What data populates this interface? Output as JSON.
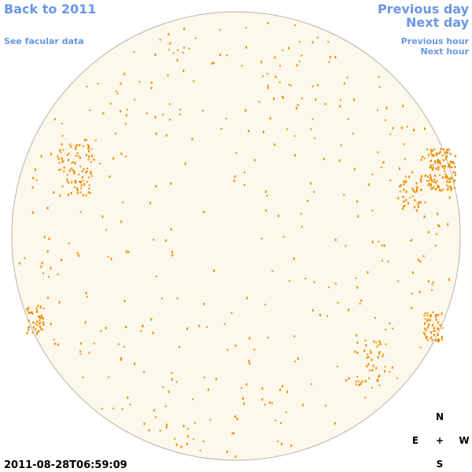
{
  "nav": {
    "back": "Back to 2011",
    "facular_data": "See facular data",
    "previous_day": "Previous day",
    "next_day": "Next day",
    "previous_hour": "Previous hour",
    "next_hour": "Next hour"
  },
  "compass": {
    "north": "N",
    "east": "E",
    "center": "+",
    "west": "W",
    "south": "S"
  },
  "timestamp": "2011-08-28T06:59:09"
}
